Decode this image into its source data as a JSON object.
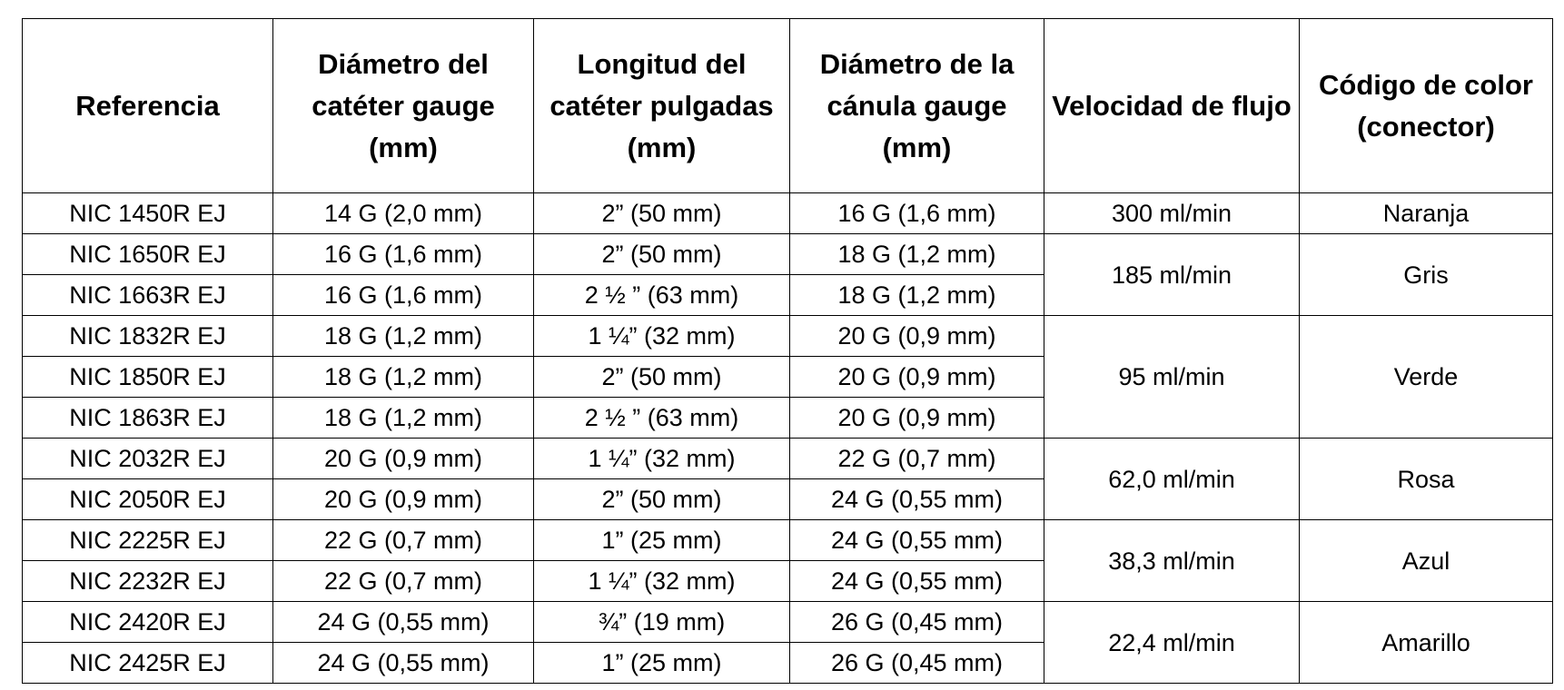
{
  "table": {
    "headers": [
      "Referencia",
      "Diámetro del catéter gauge (mm)",
      "Longitud del catéter pulgadas (mm)",
      "Diámetro de la cánula gauge (mm)",
      "Velocidad de flujo",
      "Código de color (conector)"
    ],
    "rows": [
      [
        "NIC 1450R EJ",
        "14 G (2,0 mm)",
        "2” (50 mm)",
        "16 G (1,6 mm)"
      ],
      [
        "NIC 1650R EJ",
        "16 G (1,6 mm)",
        "2” (50 mm)",
        "18 G (1,2 mm)"
      ],
      [
        "NIC 1663R EJ",
        "16 G (1,6 mm)",
        "2 ½ ” (63 mm)",
        "18 G (1,2 mm)"
      ],
      [
        "NIC 1832R EJ",
        "18 G (1,2 mm)",
        "1 ¼” (32 mm)",
        "20 G (0,9 mm)"
      ],
      [
        "NIC 1850R EJ",
        "18 G (1,2 mm)",
        "2” (50 mm)",
        "20 G (0,9 mm)"
      ],
      [
        "NIC 1863R EJ",
        "18 G (1,2 mm)",
        "2 ½ ” (63 mm)",
        "20 G (0,9 mm)"
      ],
      [
        "NIC 2032R EJ",
        "20 G (0,9 mm)",
        "1 ¼” (32 mm)",
        "22 G (0,7 mm)"
      ],
      [
        "NIC 2050R EJ",
        "20 G (0,9 mm)",
        "2” (50 mm)",
        "24 G (0,55 mm)"
      ],
      [
        "NIC 2225R EJ",
        "22 G (0,7 mm)",
        "1” (25 mm)",
        "24 G (0,55 mm)"
      ],
      [
        "NIC 2232R EJ",
        "22 G (0,7 mm)",
        "1 ¼” (32 mm)",
        "24 G (0,55 mm)"
      ],
      [
        "NIC 2420R EJ",
        "24 G (0,55 mm)",
        "¾” (19 mm)",
        "26 G (0,45 mm)"
      ],
      [
        "NIC 2425R EJ",
        "24 G (0,55 mm)",
        "1” (25 mm)",
        "26 G (0,45 mm)"
      ]
    ],
    "groups": [
      {
        "flow": "300 ml/min",
        "color": "Naranja"
      },
      {
        "flow": "185 ml/min",
        "color": "Gris"
      },
      {
        "flow": "95 ml/min",
        "color": "Verde"
      },
      {
        "flow": "62,0 ml/min",
        "color": "Rosa"
      },
      {
        "flow": "38,3 ml/min",
        "color": "Azul"
      },
      {
        "flow": "22,4 ml/min",
        "color": "Amarillo"
      }
    ]
  }
}
